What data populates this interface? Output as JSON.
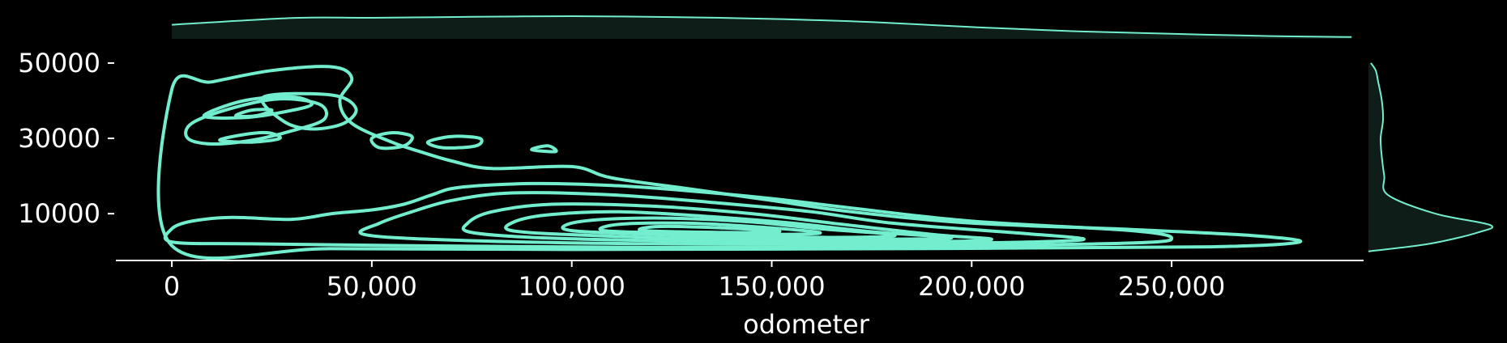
{
  "chart_data": {
    "type": "kde-joint",
    "title": "",
    "xlabel": "odometer",
    "ylabel": "",
    "xlim": [
      -14000,
      298000
    ],
    "ylim": [
      -2000,
      56000
    ],
    "x_ticks": [
      0,
      50000,
      100000,
      150000,
      200000,
      250000
    ],
    "x_tick_labels": [
      "0",
      "50,000",
      "100,000",
      "150,000",
      "200,000",
      "250,000"
    ],
    "y_ticks": [
      10000,
      30000,
      50000
    ],
    "y_tick_labels": [
      "10000",
      "30000",
      "50000"
    ],
    "grid": false,
    "legend": "none",
    "colors": {
      "line": "#72eecf",
      "fill": "#0f1d19",
      "axis": "#ffffff",
      "background": "#000000"
    },
    "contours": [
      {
        "level": 1,
        "points": [
          [
            0,
            1500
          ],
          [
            40000,
            700
          ],
          [
            100000,
            500
          ],
          [
            200000,
            800
          ],
          [
            260000,
            1200
          ],
          [
            282000,
            2500
          ],
          [
            270000,
            4200
          ],
          [
            240000,
            5800
          ],
          [
            200000,
            7500
          ],
          [
            170000,
            10500
          ],
          [
            150000,
            13500
          ],
          [
            130000,
            16500
          ],
          [
            110000,
            19500
          ],
          [
            100000,
            22500
          ],
          [
            80000,
            22000
          ],
          [
            70000,
            24000
          ],
          [
            62000,
            26500
          ],
          [
            55000,
            29000
          ],
          [
            45000,
            34000
          ],
          [
            42000,
            40000
          ],
          [
            45000,
            46000
          ],
          [
            40000,
            49000
          ],
          [
            25000,
            48000
          ],
          [
            10000,
            45000
          ],
          [
            0,
            43000
          ]
        ]
      },
      {
        "level": 2,
        "points": [
          [
            0,
            2500
          ],
          [
            20000,
            2000
          ],
          [
            60000,
            1500
          ],
          [
            120000,
            1000
          ],
          [
            190000,
            1400
          ],
          [
            240000,
            2200
          ],
          [
            250000,
            3500
          ],
          [
            240000,
            5500
          ],
          [
            200000,
            8000
          ],
          [
            170000,
            11500
          ],
          [
            150000,
            14000
          ],
          [
            130000,
            16000
          ],
          [
            110000,
            17500
          ],
          [
            90000,
            18000
          ],
          [
            72000,
            17000
          ],
          [
            65000,
            15000
          ],
          [
            58000,
            12500
          ],
          [
            50000,
            11000
          ],
          [
            40000,
            10000
          ],
          [
            30000,
            8500
          ],
          [
            15000,
            9000
          ],
          [
            5000,
            8000
          ],
          [
            0,
            6000
          ]
        ]
      },
      {
        "level": 3,
        "points": [
          [
            48000,
            4500
          ],
          [
            70000,
            3000
          ],
          [
            120000,
            2000
          ],
          [
            180000,
            2000
          ],
          [
            215000,
            2500
          ],
          [
            228000,
            3300
          ],
          [
            210000,
            5000
          ],
          [
            180000,
            7500
          ],
          [
            160000,
            10500
          ],
          [
            135000,
            13000
          ],
          [
            110000,
            15000
          ],
          [
            85000,
            15500
          ],
          [
            70000,
            13500
          ],
          [
            60000,
            10500
          ],
          [
            52000,
            7500
          ]
        ]
      },
      {
        "level": 4,
        "points": [
          [
            75000,
            5000
          ],
          [
            95000,
            3500
          ],
          [
            140000,
            2600
          ],
          [
            190000,
            2600
          ],
          [
            205000,
            3200
          ],
          [
            190000,
            4500
          ],
          [
            165000,
            7500
          ],
          [
            145000,
            10000
          ],
          [
            120000,
            12000
          ],
          [
            95000,
            12500
          ],
          [
            80000,
            10500
          ],
          [
            74000,
            7500
          ]
        ]
      },
      {
        "level": 5,
        "points": [
          [
            85000,
            5500
          ],
          [
            105000,
            4200
          ],
          [
            140000,
            3200
          ],
          [
            175000,
            3200
          ],
          [
            195000,
            3600
          ],
          [
            175000,
            5200
          ],
          [
            155000,
            7500
          ],
          [
            135000,
            9200
          ],
          [
            112000,
            10500
          ],
          [
            95000,
            9800
          ],
          [
            86000,
            8000
          ]
        ]
      },
      {
        "level": 6,
        "points": [
          [
            100000,
            5500
          ],
          [
            120000,
            4500
          ],
          [
            150000,
            3800
          ],
          [
            175000,
            3800
          ],
          [
            180000,
            4500
          ],
          [
            162000,
            6000
          ],
          [
            145000,
            7800
          ],
          [
            125000,
            8800
          ],
          [
            108000,
            8500
          ],
          [
            99000,
            7200
          ]
        ]
      },
      {
        "level": 7,
        "points": [
          [
            108000,
            5500
          ],
          [
            128000,
            4800
          ],
          [
            152000,
            4500
          ],
          [
            162000,
            5000
          ],
          [
            145000,
            6600
          ],
          [
            128000,
            7500
          ],
          [
            112000,
            7200
          ]
        ]
      },
      {
        "level": 8,
        "points": [
          [
            118000,
            5500
          ],
          [
            140000,
            5000
          ],
          [
            152000,
            5300
          ],
          [
            138000,
            6200
          ],
          [
            122000,
            6600
          ]
        ]
      },
      {
        "level": 9,
        "points": [
          [
            5000,
            34000
          ],
          [
            15000,
            38000
          ],
          [
            27000,
            40500
          ],
          [
            37000,
            39000
          ],
          [
            38000,
            35000
          ],
          [
            30000,
            32000
          ],
          [
            20000,
            29500
          ],
          [
            10000,
            28500
          ],
          [
            4000,
            30000
          ]
        ]
      },
      {
        "level": 9,
        "points": [
          [
            8000,
            36000
          ],
          [
            18000,
            40000
          ],
          [
            30000,
            41000
          ],
          [
            35000,
            39000
          ],
          [
            28000,
            37000
          ],
          [
            18000,
            35500
          ]
        ]
      },
      {
        "level": 9,
        "points": [
          [
            12000,
            29500
          ],
          [
            18000,
            31000
          ],
          [
            24000,
            31500
          ],
          [
            27000,
            30000
          ],
          [
            20000,
            29000
          ]
        ]
      },
      {
        "level": 9,
        "points": [
          [
            16000,
            36000
          ],
          [
            20000,
            37500
          ],
          [
            25000,
            37500
          ],
          [
            21000,
            36000
          ]
        ]
      },
      {
        "level": 9,
        "points": [
          [
            64000,
            29000
          ],
          [
            70000,
            30500
          ],
          [
            77000,
            30000
          ],
          [
            76000,
            28000
          ],
          [
            68000,
            27500
          ]
        ]
      },
      {
        "level": 9,
        "points": [
          [
            23000,
            41000
          ],
          [
            40000,
            41500
          ],
          [
            46000,
            38000
          ],
          [
            43000,
            34000
          ],
          [
            35000,
            32500
          ],
          [
            28000,
            34500
          ]
        ]
      },
      {
        "level": 9,
        "points": [
          [
            50000,
            30000
          ],
          [
            55000,
            31500
          ],
          [
            60000,
            30500
          ],
          [
            58000,
            28000
          ],
          [
            52000,
            27500
          ]
        ]
      },
      {
        "level": 9,
        "points": [
          [
            90000,
            27000
          ],
          [
            94000,
            28000
          ],
          [
            96000,
            26500
          ]
        ]
      }
    ],
    "x_marginal": {
      "x": [
        0,
        30000,
        50000,
        75000,
        100000,
        125000,
        150000,
        175000,
        200000,
        225000,
        250000,
        275000,
        295000
      ],
      "density": [
        0.62,
        0.92,
        0.93,
        0.97,
        1.0,
        0.96,
        0.88,
        0.74,
        0.52,
        0.34,
        0.22,
        0.12,
        0.08
      ]
    },
    "y_marginal": {
      "y": [
        0,
        2000,
        5000,
        7000,
        10000,
        15000,
        20000,
        25000,
        30000,
        35000,
        40000,
        45000,
        48000,
        50000
      ],
      "density": [
        0.0,
        0.5,
        0.9,
        1.0,
        0.55,
        0.16,
        0.13,
        0.11,
        0.1,
        0.12,
        0.11,
        0.08,
        0.06,
        0.02
      ]
    }
  }
}
